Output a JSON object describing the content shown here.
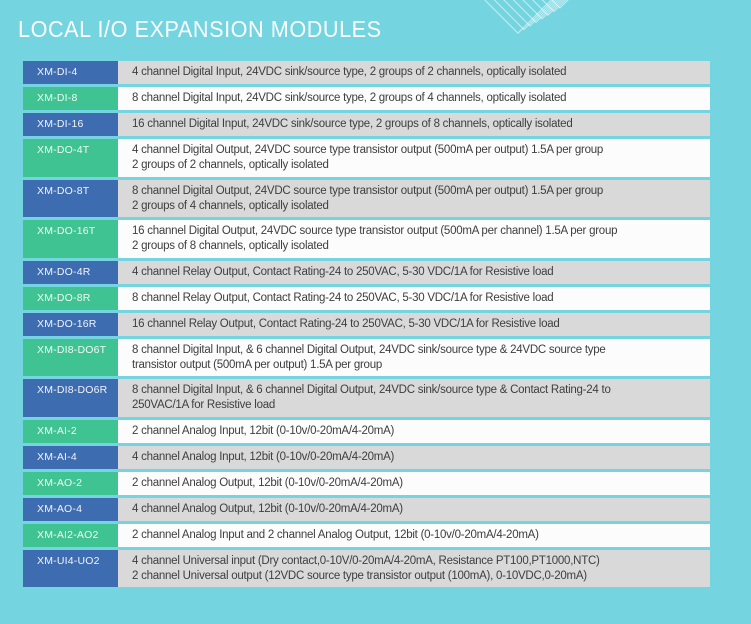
{
  "page": {
    "title": "LOCAL I/O EXPANSION MODULES",
    "background_color": "#74d5e0"
  },
  "colors": {
    "badge_blue": "#3d6cb1",
    "badge_green": "#3fc392",
    "row_gray": "#d9d9d9",
    "row_white": "#fcfcfc",
    "description_text": "#3e3e3e",
    "title_text": "#fbfeff",
    "decoration_line": "rgba(255,255,255,0.55)"
  },
  "decoration": {
    "name": "nested-squares-pattern"
  },
  "table": {
    "rows": [
      {
        "model": "XM-DI-4",
        "badge": "blue",
        "shade": "gray",
        "description": "4 channel Digital Input, 24VDC sink/source type, 2 groups of 2 channels, optically isolated"
      },
      {
        "model": "XM-DI-8",
        "badge": "green",
        "shade": "white",
        "description": "8 channel Digital Input, 24VDC sink/source type, 2 groups of 4 channels, optically isolated"
      },
      {
        "model": "XM-DI-16",
        "badge": "blue",
        "shade": "gray",
        "description": "16 channel Digital Input, 24VDC sink/source type, 2 groups of 8 channels, optically isolated"
      },
      {
        "model": "XM-DO-4T",
        "badge": "green",
        "shade": "white",
        "description": "4 channel Digital Output, 24VDC source type transistor output (500mA per output) 1.5A per group\n2 groups of 2 channels, optically isolated"
      },
      {
        "model": "XM-DO-8T",
        "badge": "blue",
        "shade": "gray",
        "description": "8 channel Digital Output, 24VDC source type transistor output (500mA per output) 1.5A per group\n2 groups of 4 channels, optically isolated"
      },
      {
        "model": "XM-DO-16T",
        "badge": "green",
        "shade": "white",
        "description": "16 channel Digital Output, 24VDC source type transistor output (500mA per channel) 1.5A per group\n2 groups of 8 channels, optically isolated"
      },
      {
        "model": "XM-DO-4R",
        "badge": "blue",
        "shade": "gray",
        "description": "4 channel Relay Output, Contact Rating-24 to 250VAC, 5-30 VDC/1A for Resistive load"
      },
      {
        "model": "XM-DO-8R",
        "badge": "green",
        "shade": "white",
        "description": "8 channel Relay Output, Contact Rating-24 to 250VAC, 5-30 VDC/1A for Resistive load"
      },
      {
        "model": "XM-DO-16R",
        "badge": "blue",
        "shade": "gray",
        "description": "16 channel Relay Output, Contact Rating-24 to 250VAC, 5-30 VDC/1A for Resistive load"
      },
      {
        "model": "XM-DI8-DO6T",
        "badge": "green",
        "shade": "white",
        "description": "8 channel Digital Input, & 6 channel Digital Output, 24VDC sink/source type & 24VDC source type\ntransistor output (500mA per output) 1.5A per group"
      },
      {
        "model": "XM-DI8-DO6R",
        "badge": "blue",
        "shade": "gray",
        "description": "8 channel Digital Input, & 6 channel Digital Output, 24VDC sink/source type & Contact Rating-24 to\n250VAC/1A for Resistive load"
      },
      {
        "model": "XM-AI-2",
        "badge": "green",
        "shade": "white",
        "description": "2 channel Analog Input, 12bit (0-10v/0-20mA/4-20mA)"
      },
      {
        "model": "XM-AI-4",
        "badge": "blue",
        "shade": "gray",
        "description": "4 channel Analog Input, 12bit (0-10v/0-20mA/4-20mA)"
      },
      {
        "model": "XM-AO-2",
        "badge": "green",
        "shade": "white",
        "description": "2 channel Analog Output, 12bit (0-10v/0-20mA/4-20mA)"
      },
      {
        "model": "XM-AO-4",
        "badge": "blue",
        "shade": "gray",
        "description": "4 channel Analog Output, 12bit (0-10v/0-20mA/4-20mA)"
      },
      {
        "model": "XM-AI2-AO2",
        "badge": "green",
        "shade": "white",
        "description": "2 channel Analog Input and 2 channel Analog Output, 12bit (0-10v/0-20mA/4-20mA)"
      },
      {
        "model": "XM-UI4-UO2",
        "badge": "blue",
        "shade": "gray",
        "description": "4 channel Universal input (Dry contact,0-10V/0-20mA/4-20mA, Resistance PT100,PT1000,NTC)\n2 channel Universal output (12VDC source type transistor output (100mA), 0-10VDC,0-20mA)"
      }
    ]
  }
}
